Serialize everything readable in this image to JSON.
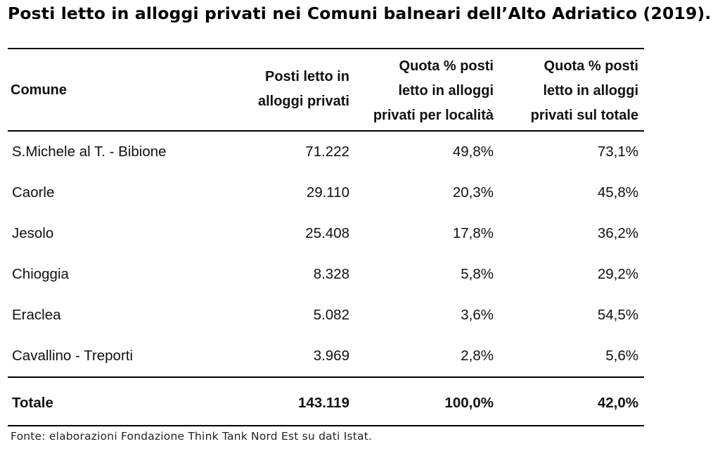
{
  "title": "Posti letto in alloggi privati nei Comuni balneari dell’Alto Adriatico (2019).",
  "table": {
    "headers": [
      [
        "Comune"
      ],
      [
        "Posti letto in",
        "alloggi privati"
      ],
      [
        "Quota % posti",
        "letto in alloggi",
        "privati per località"
      ],
      [
        "Quota % posti",
        "letto in alloggi",
        "privati sul totale"
      ]
    ],
    "rows": [
      [
        "S.Michele al T. - Bibione",
        "71.222",
        "49,8%",
        "73,1%"
      ],
      [
        "Caorle",
        "29.110",
        "20,3%",
        "45,8%"
      ],
      [
        "Jesolo",
        "25.408",
        "17,8%",
        "36,2%"
      ],
      [
        "Chioggia",
        "8.328",
        "5,8%",
        "29,2%"
      ],
      [
        "Eraclea",
        "5.082",
        "3,6%",
        "54,5%"
      ],
      [
        "Cavallino - Treporti",
        "3.969",
        "2,8%",
        "5,6%"
      ]
    ],
    "total": [
      "Totale",
      "143.119",
      "100,0%",
      "42,0%"
    ]
  },
  "source": "Fonte: elaborazioni Fondazione Think Tank Nord Est su dati Istat."
}
